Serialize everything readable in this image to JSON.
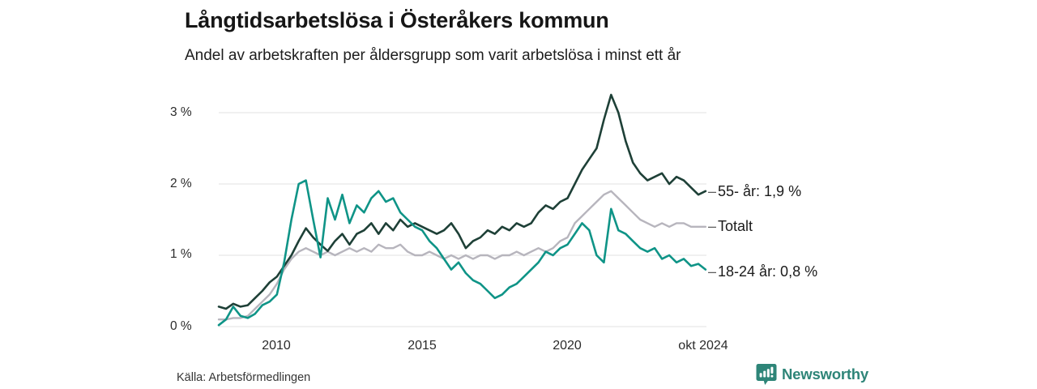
{
  "chart_data": {
    "type": "line",
    "title": "Långtidsarbetslösa i Österåkers kommun",
    "subtitle": "Andel av arbetskraften per åldersgrupp som varit arbetslösa i minst ett år",
    "xlabel": "",
    "ylabel": "",
    "xlim": [
      2008,
      2024.78
    ],
    "ylim": [
      0,
      3.3
    ],
    "grid": "horizontal",
    "grid_color": "#e2e2e2",
    "legend_position": "right-of-line-ends",
    "legend_dash": "–",
    "draw_order": [
      1,
      0,
      2
    ],
    "x": [
      2008,
      2008.25,
      2008.5,
      2008.75,
      2009,
      2009.25,
      2009.5,
      2009.75,
      2010,
      2010.25,
      2010.5,
      2010.75,
      2011,
      2011.25,
      2011.5,
      2011.75,
      2012,
      2012.25,
      2012.5,
      2012.75,
      2013,
      2013.25,
      2013.5,
      2013.75,
      2014,
      2014.25,
      2014.5,
      2014.75,
      2015,
      2015.25,
      2015.5,
      2015.75,
      2016,
      2016.25,
      2016.5,
      2016.75,
      2017,
      2017.25,
      2017.5,
      2017.75,
      2018,
      2018.25,
      2018.5,
      2018.75,
      2019,
      2019.25,
      2019.5,
      2019.75,
      2020,
      2020.25,
      2020.5,
      2020.75,
      2021,
      2021.25,
      2021.5,
      2021.75,
      2022,
      2022.25,
      2022.5,
      2022.75,
      2023,
      2023.25,
      2023.5,
      2023.75,
      2024,
      2024.25,
      2024.5,
      2024.75
    ],
    "series": [
      {
        "id": "55-ar",
        "name": "55- år",
        "label": "55- år: 1,9 %",
        "last_value": "1,9 %",
        "color": "#1e4037",
        "stroke_width": 2.6,
        "values": [
          0.28,
          0.25,
          0.32,
          0.28,
          0.3,
          0.4,
          0.5,
          0.62,
          0.7,
          0.85,
          1.0,
          1.2,
          1.38,
          1.25,
          1.15,
          1.06,
          1.2,
          1.3,
          1.15,
          1.3,
          1.35,
          1.45,
          1.3,
          1.45,
          1.35,
          1.5,
          1.4,
          1.45,
          1.4,
          1.35,
          1.3,
          1.35,
          1.45,
          1.3,
          1.1,
          1.2,
          1.25,
          1.35,
          1.3,
          1.4,
          1.35,
          1.45,
          1.4,
          1.45,
          1.6,
          1.7,
          1.65,
          1.75,
          1.8,
          2.0,
          2.2,
          2.35,
          2.5,
          2.9,
          3.25,
          3.0,
          2.6,
          2.3,
          2.15,
          2.05,
          2.1,
          2.15,
          2.0,
          2.1,
          2.05,
          1.95,
          1.85,
          1.9
        ]
      },
      {
        "id": "totalt",
        "name": "Totalt",
        "label": "Totalt",
        "last_value": "1,4 %",
        "color": "#b7b5bd",
        "stroke_width": 2.4,
        "values": [
          0.1,
          0.1,
          0.12,
          0.12,
          0.15,
          0.25,
          0.35,
          0.45,
          0.6,
          0.8,
          0.95,
          1.05,
          1.1,
          1.05,
          1.0,
          1.05,
          1.0,
          1.05,
          1.1,
          1.05,
          1.1,
          1.05,
          1.15,
          1.1,
          1.1,
          1.15,
          1.05,
          1.0,
          1.0,
          1.05,
          1.0,
          0.95,
          1.0,
          0.95,
          1.0,
          0.95,
          1.0,
          1.0,
          0.95,
          1.0,
          1.0,
          1.05,
          1.0,
          1.05,
          1.1,
          1.05,
          1.1,
          1.2,
          1.25,
          1.45,
          1.55,
          1.65,
          1.75,
          1.85,
          1.9,
          1.8,
          1.7,
          1.6,
          1.5,
          1.45,
          1.4,
          1.45,
          1.4,
          1.45,
          1.45,
          1.4,
          1.4,
          1.4
        ]
      },
      {
        "id": "18-24-ar",
        "name": "18-24 år",
        "label": "18-24 år: 0,8 %",
        "last_value": "0,8 %",
        "color": "#0f9487",
        "stroke_width": 2.6,
        "values": [
          0.02,
          0.1,
          0.28,
          0.15,
          0.12,
          0.18,
          0.3,
          0.35,
          0.45,
          0.9,
          1.5,
          2.0,
          2.05,
          1.5,
          0.97,
          1.8,
          1.5,
          1.85,
          1.45,
          1.7,
          1.6,
          1.8,
          1.9,
          1.75,
          1.8,
          1.6,
          1.5,
          1.4,
          1.35,
          1.2,
          1.1,
          0.95,
          0.8,
          0.9,
          0.75,
          0.65,
          0.6,
          0.5,
          0.4,
          0.45,
          0.55,
          0.6,
          0.7,
          0.8,
          0.9,
          1.05,
          1.0,
          1.1,
          1.15,
          1.3,
          1.45,
          1.35,
          1.0,
          0.9,
          1.65,
          1.35,
          1.3,
          1.2,
          1.1,
          1.05,
          1.1,
          0.95,
          1.0,
          0.9,
          0.95,
          0.85,
          0.88,
          0.8
        ]
      }
    ],
    "yticks": [
      {
        "label": "3 %",
        "value": 3
      },
      {
        "label": "2 %",
        "value": 2
      },
      {
        "label": "1 %",
        "value": 1
      },
      {
        "label": "0 %",
        "value": 0
      }
    ],
    "xticks": [
      {
        "label": "2010",
        "year": 2010
      },
      {
        "label": "2015",
        "year": 2015
      },
      {
        "label": "2020",
        "year": 2020
      },
      {
        "label": "okt 2024",
        "year": 2024.75
      }
    ]
  },
  "source": "Källa: Arbetsförmedlingen",
  "logo": {
    "text": "Newsworthy",
    "icon": "newsworthy-bar-chart-speech-bubble",
    "brand_color": "#2e8578"
  }
}
